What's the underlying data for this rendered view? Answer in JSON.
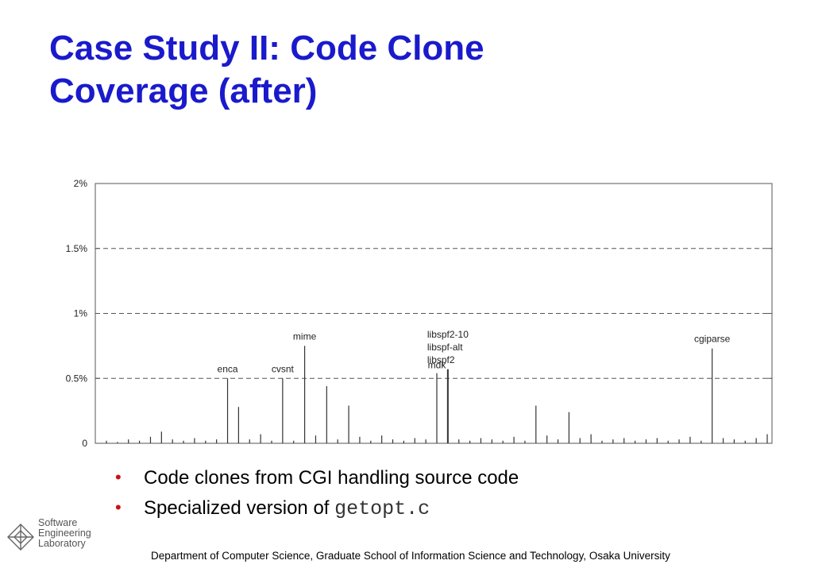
{
  "title": {
    "line1": "Case Study II: Code Clone",
    "line2": "Coverage (after)"
  },
  "chart_data": {
    "type": "bar",
    "ylim": [
      0,
      2
    ],
    "y_ticks": [
      {
        "value": 0,
        "label": "0"
      },
      {
        "value": 0.5,
        "label": "0.5%"
      },
      {
        "value": 1,
        "label": "1%"
      },
      {
        "value": 1.5,
        "label": "1.5%"
      },
      {
        "value": 2,
        "label": "2%"
      }
    ],
    "grid": "dashed horizontal",
    "labeled_bars": [
      {
        "label": "enca",
        "value": 0.5
      },
      {
        "label": "cvsnt",
        "value": 0.5
      },
      {
        "label": "mime",
        "value": 0.75
      },
      {
        "label": "mdk",
        "value": 0.54
      },
      {
        "label": "libspf2-10",
        "value": 0.57
      },
      {
        "label": "libspf-alt",
        "value": 0.57
      },
      {
        "label": "libspf2",
        "value": 0.57
      },
      {
        "label": "cgiparse",
        "value": 0.73
      }
    ],
    "values": [
      0.02,
      0.01,
      0.03,
      0.02,
      0.05,
      0.09,
      0.03,
      0.02,
      0.04,
      0.02,
      0.03,
      0.5,
      0.28,
      0.03,
      0.07,
      0.02,
      0.5,
      0.02,
      0.75,
      0.06,
      0.44,
      0.03,
      0.29,
      0.05,
      0.02,
      0.06,
      0.03,
      0.02,
      0.04,
      0.03,
      0.54,
      0.57,
      0.03,
      0.02,
      0.04,
      0.03,
      0.02,
      0.05,
      0.02,
      0.29,
      0.06,
      0.03,
      0.24,
      0.04,
      0.07,
      0.02,
      0.03,
      0.04,
      0.02,
      0.03,
      0.04,
      0.02,
      0.03,
      0.05,
      0.02,
      0.73,
      0.04,
      0.03,
      0.02,
      0.04,
      0.07
    ]
  },
  "bullets": [
    {
      "text": "Code clones from CGI handling source code"
    },
    {
      "prefix": "Specialized version of ",
      "code": "getopt.c"
    }
  ],
  "logo": {
    "line1": "Software",
    "line2": "Engineering",
    "line3": "Laboratory"
  },
  "footer": "Department of Computer Science, Graduate School of Information Science and Technology, Osaka University"
}
